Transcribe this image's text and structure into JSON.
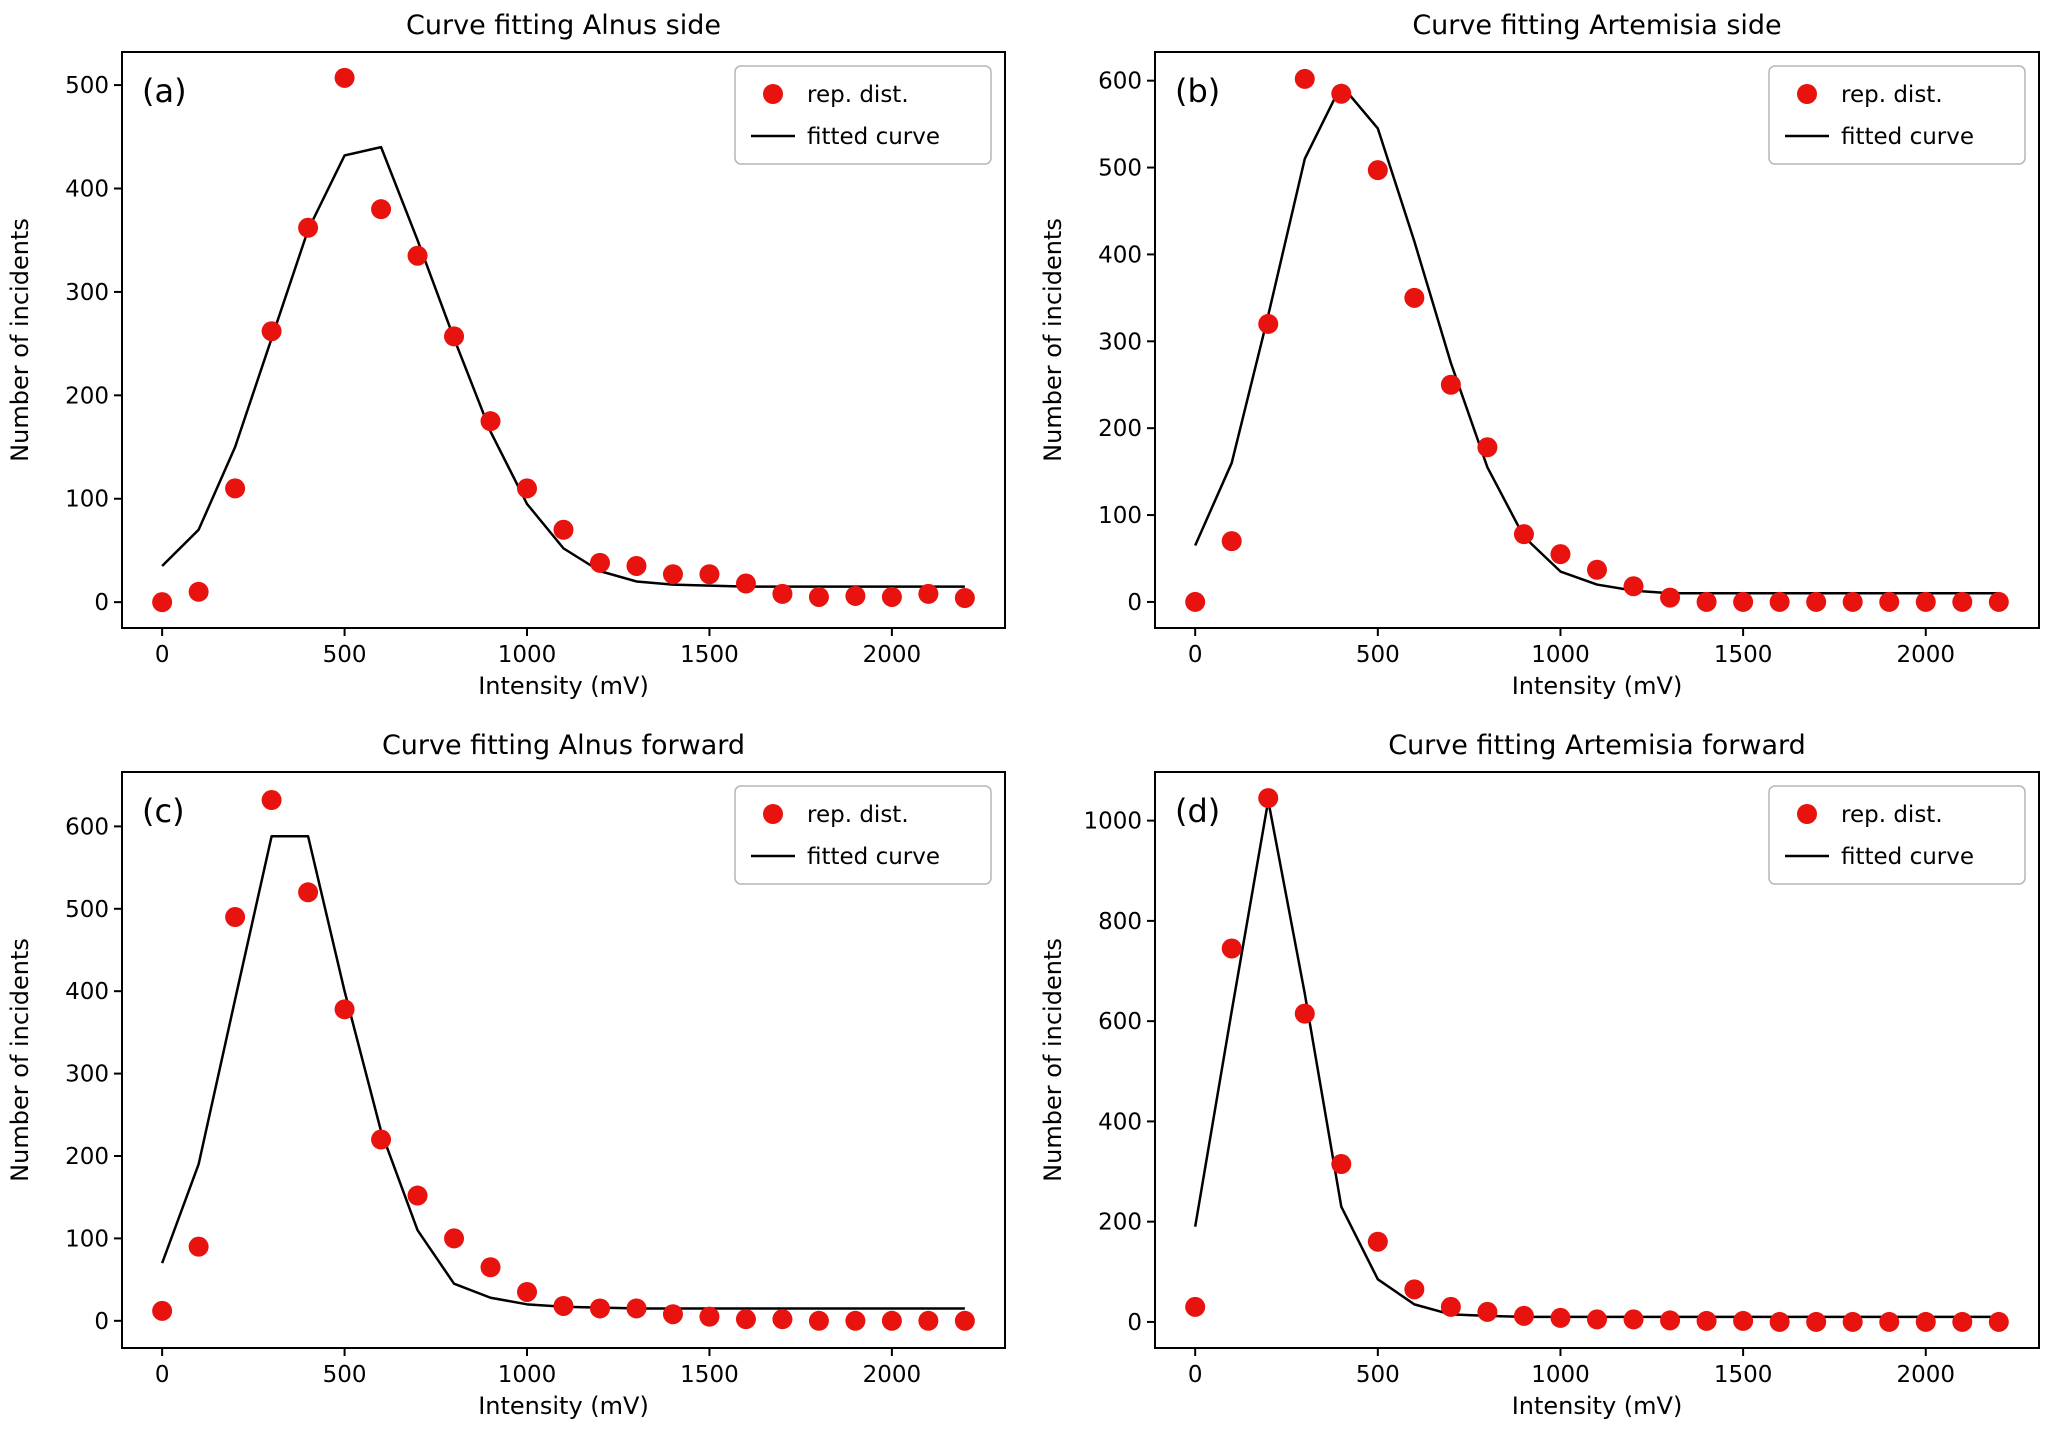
{
  "page": {
    "background": "#ffffff"
  },
  "style": {
    "marker_color": "#e8120f",
    "line_color": "#000000",
    "axis_color": "#000000",
    "legend_border_color": "#b5b5b5"
  },
  "legend": {
    "marker_label": "rep. dist.",
    "line_label": "fitted curve",
    "position": "upper right"
  },
  "chart_data": [
    {
      "type": "scatter",
      "panel_label": "(a)",
      "title": "Curve fitting Alnus side",
      "xlabel": "Intensity (mV)",
      "ylabel": "Number of incidents",
      "xlim": [
        -110,
        2310
      ],
      "ylim": [
        -25,
        532
      ],
      "xticks": [
        0,
        500,
        1000,
        1500,
        2000
      ],
      "yticks": [
        0,
        100,
        200,
        300,
        400,
        500
      ],
      "grid": false,
      "legend_position": "upper right",
      "x": [
        0,
        100,
        200,
        300,
        400,
        500,
        600,
        700,
        800,
        900,
        1000,
        1100,
        1200,
        1300,
        1400,
        1500,
        1600,
        1700,
        1800,
        1900,
        2000,
        2100,
        2200
      ],
      "series": [
        {
          "name": "rep. dist.",
          "style": "scatter",
          "values": [
            0,
            10,
            110,
            262,
            362,
            507,
            380,
            335,
            257,
            175,
            110,
            70,
            38,
            35,
            27,
            27,
            18,
            8,
            5,
            6,
            5,
            8,
            4
          ]
        },
        {
          "name": "fitted curve",
          "style": "line",
          "values": [
            35,
            70,
            150,
            255,
            360,
            432,
            440,
            350,
            255,
            165,
            95,
            52,
            30,
            20,
            17,
            16,
            15,
            15,
            15,
            15,
            15,
            15,
            15
          ]
        }
      ]
    },
    {
      "type": "scatter",
      "panel_label": "(b)",
      "title": "Curve fitting Artemisia side",
      "xlabel": "Intensity (mV)",
      "ylabel": "Number of incidents",
      "xlim": [
        -110,
        2310
      ],
      "ylim": [
        -30,
        633
      ],
      "xticks": [
        0,
        500,
        1000,
        1500,
        2000
      ],
      "yticks": [
        0,
        100,
        200,
        300,
        400,
        500,
        600
      ],
      "grid": false,
      "legend_position": "upper right",
      "x": [
        0,
        100,
        200,
        300,
        400,
        500,
        600,
        700,
        800,
        900,
        1000,
        1100,
        1200,
        1300,
        1400,
        1500,
        1600,
        1700,
        1800,
        1900,
        2000,
        2100,
        2200
      ],
      "series": [
        {
          "name": "rep. dist.",
          "style": "scatter",
          "values": [
            0,
            70,
            320,
            602,
            585,
            497,
            350,
            250,
            178,
            78,
            55,
            37,
            18,
            5,
            0,
            0,
            0,
            0,
            0,
            0,
            0,
            0,
            0
          ]
        },
        {
          "name": "fitted curve",
          "style": "line",
          "values": [
            65,
            160,
            330,
            510,
            595,
            545,
            415,
            275,
            155,
            75,
            35,
            20,
            13,
            10,
            10,
            10,
            10,
            10,
            10,
            10,
            10,
            10,
            10
          ]
        }
      ]
    },
    {
      "type": "scatter",
      "panel_label": "(c)",
      "title": "Curve fitting Alnus forward",
      "xlabel": "Intensity (mV)",
      "ylabel": "Number of incidents",
      "xlim": [
        -110,
        2310
      ],
      "ylim": [
        -33,
        666
      ],
      "xticks": [
        0,
        500,
        1000,
        1500,
        2000
      ],
      "yticks": [
        0,
        100,
        200,
        300,
        400,
        500,
        600
      ],
      "grid": false,
      "legend_position": "upper right",
      "x": [
        0,
        100,
        200,
        300,
        400,
        500,
        600,
        700,
        800,
        900,
        1000,
        1100,
        1200,
        1300,
        1400,
        1500,
        1600,
        1700,
        1800,
        1900,
        2000,
        2100,
        2200
      ],
      "series": [
        {
          "name": "rep. dist.",
          "style": "scatter",
          "values": [
            12,
            90,
            490,
            632,
            520,
            378,
            220,
            152,
            100,
            65,
            35,
            18,
            15,
            15,
            8,
            5,
            2,
            2,
            0,
            0,
            0,
            0,
            0
          ]
        },
        {
          "name": "fitted curve",
          "style": "line",
          "values": [
            70,
            190,
            390,
            588,
            588,
            400,
            230,
            110,
            45,
            28,
            20,
            17,
            16,
            15,
            15,
            15,
            15,
            15,
            15,
            15,
            15,
            15,
            15
          ]
        }
      ]
    },
    {
      "type": "scatter",
      "panel_label": "(d)",
      "title": "Curve fitting Artemisia forward",
      "xlabel": "Intensity (mV)",
      "ylabel": "Number of incidents",
      "xlim": [
        -110,
        2310
      ],
      "ylim": [
        -52,
        1097
      ],
      "xticks": [
        0,
        500,
        1000,
        1500,
        2000
      ],
      "yticks": [
        0,
        200,
        400,
        600,
        800,
        1000
      ],
      "grid": false,
      "legend_position": "upper right",
      "x": [
        0,
        100,
        200,
        300,
        400,
        500,
        600,
        700,
        800,
        900,
        1000,
        1100,
        1200,
        1300,
        1400,
        1500,
        1600,
        1700,
        1800,
        1900,
        2000,
        2100,
        2200
      ],
      "series": [
        {
          "name": "rep. dist.",
          "style": "scatter",
          "values": [
            30,
            745,
            1045,
            615,
            315,
            160,
            65,
            30,
            20,
            12,
            8,
            5,
            5,
            3,
            2,
            2,
            0,
            0,
            0,
            0,
            0,
            0,
            0
          ]
        },
        {
          "name": "fitted curve",
          "style": "line",
          "values": [
            190,
            620,
            1040,
            655,
            230,
            85,
            35,
            15,
            12,
            10,
            10,
            10,
            10,
            10,
            10,
            10,
            10,
            10,
            10,
            10,
            10,
            10,
            10
          ]
        }
      ]
    }
  ]
}
